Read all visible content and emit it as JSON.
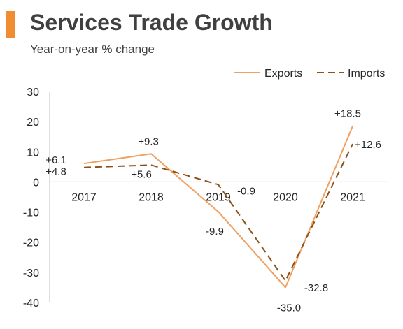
{
  "header": {
    "title": "Services Trade Growth",
    "subtitle": "Year-on-year % change",
    "accent_color": "#f08c32"
  },
  "chart_data": {
    "type": "line",
    "title": "Services Trade Growth",
    "subtitle": "Year-on-year % change",
    "xlabel": "",
    "ylabel": "",
    "categories": [
      "2017",
      "2018",
      "2019",
      "2020",
      "2021"
    ],
    "ylim": [
      -40,
      30
    ],
    "yticks": [
      30,
      20,
      10,
      0,
      -10,
      -20,
      -30,
      -40
    ],
    "grid": false,
    "legend_position": "top-right",
    "series": [
      {
        "name": "Exports",
        "values": [
          6.1,
          9.3,
          -9.9,
          -35.0,
          18.5
        ],
        "data_labels": [
          "+6.1",
          "+9.3",
          "-9.9",
          "-35.0",
          "+18.5"
        ],
        "color": "#f0a060",
        "line_style": "solid"
      },
      {
        "name": "Imports",
        "values": [
          4.8,
          5.6,
          -0.9,
          -32.8,
          12.6
        ],
        "data_labels": [
          "+4.8",
          "+5.6",
          "-0.9",
          "-32.8",
          "+12.6"
        ],
        "color": "#8c5218",
        "line_style": "dashed"
      }
    ]
  }
}
